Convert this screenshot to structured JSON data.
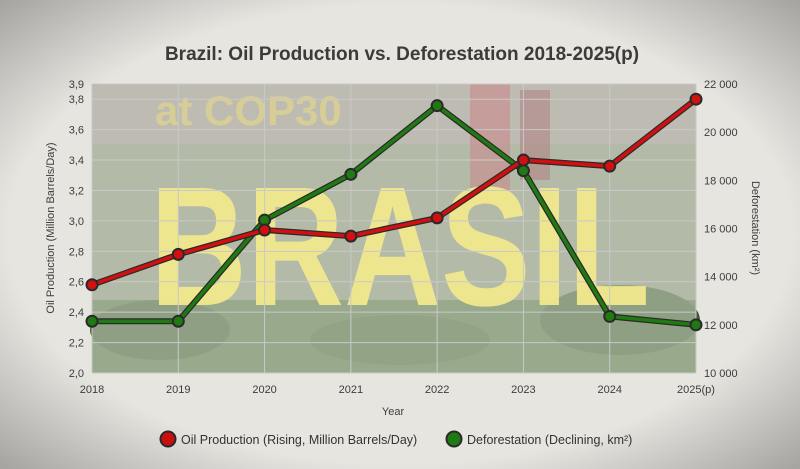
{
  "colors": {
    "oil": "#d40f0f",
    "deforestation": "#1f7a12",
    "marker_outline": "#2a2a2a",
    "grid": "#c9c9c9",
    "background": "#e7e5e0"
  },
  "background_photo": {
    "banner_text": "BRASIL",
    "sign_text": "at COP30"
  },
  "chart_data": {
    "type": "line",
    "title": "Brazil: Oil Production vs. Deforestation 2018-2025(p)",
    "xlabel": "Year",
    "ylabel_left": "Oil Production (Million Barrels/Day)",
    "ylabel_right": "Deforestation (km²)",
    "categories": [
      "2018",
      "2019",
      "2020",
      "2021",
      "2022",
      "2023",
      "2024",
      "2025(p)"
    ],
    "y_left": {
      "min": 2.0,
      "max": 3.9,
      "ticks": [
        2.0,
        2.2,
        2.4,
        2.6,
        2.8,
        3.0,
        3.2,
        3.4,
        3.6,
        3.8,
        3.9
      ],
      "tick_labels": [
        "2,0",
        "2,2",
        "2,4",
        "2,6",
        "2,8",
        "3,0",
        "3,2",
        "3,4",
        "3,6",
        "3,8",
        "3,9"
      ]
    },
    "y_right": {
      "min": 10000,
      "max": 22000,
      "ticks": [
        10000,
        12000,
        14000,
        16000,
        18000,
        20000,
        22000
      ],
      "tick_labels": [
        "10 000",
        "12 000",
        "14 000",
        "16 000",
        "18 000",
        "20 000",
        "22 000"
      ]
    },
    "series": [
      {
        "name": "Oil Production (Rising, Million Barrels/Day)",
        "axis": "left",
        "color": "#d40f0f",
        "values": [
          2.58,
          2.78,
          2.94,
          2.9,
          3.02,
          3.4,
          3.36,
          3.8
        ]
      },
      {
        "name": "Deforestation (Declining, km²)",
        "axis": "right",
        "color": "#1f7a12",
        "values": [
          12150,
          12150,
          16350,
          18250,
          21100,
          18400,
          12350,
          12000
        ]
      }
    ],
    "legend_position": "bottom-center",
    "grid": true
  }
}
